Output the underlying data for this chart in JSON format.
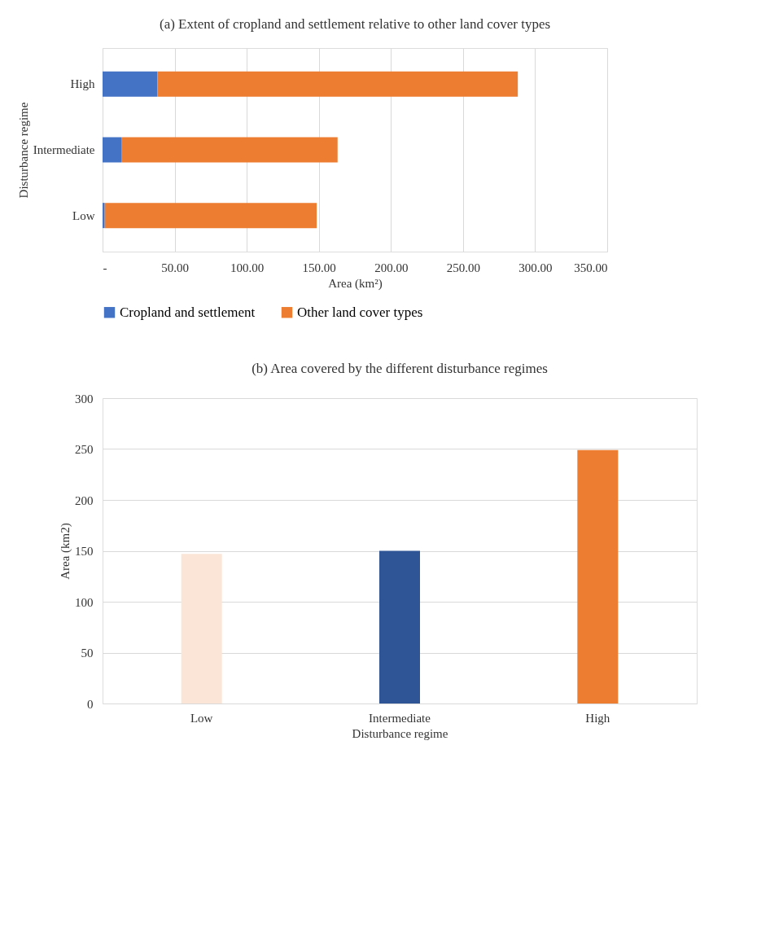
{
  "chart_data": [
    {
      "type": "bar",
      "orientation": "horizontal",
      "stacked": true,
      "title": "(a) Extent of cropland and settlement relative to other land cover types",
      "xlabel": "Area (km²)",
      "ylabel": "Disturbance regime",
      "categories": [
        "High",
        "Intermediate",
        "Low"
      ],
      "series": [
        {
          "name": "Cropland and settlement",
          "color": "#4472c4",
          "values": [
            38,
            13,
            1.5
          ]
        },
        {
          "name": "Other land cover types",
          "color": "#ed7d31",
          "values": [
            250,
            150,
            147
          ]
        }
      ],
      "xlim": [
        0,
        350
      ],
      "xticks": [
        {
          "value": 0,
          "label": "-"
        },
        {
          "value": 50,
          "label": "50.00"
        },
        {
          "value": 100,
          "label": "100.00"
        },
        {
          "value": 150,
          "label": "150.00"
        },
        {
          "value": 200,
          "label": "200.00"
        },
        {
          "value": 250,
          "label": "250.00"
        },
        {
          "value": 300,
          "label": "300.00"
        },
        {
          "value": 350,
          "label": "350.00"
        }
      ],
      "grid": "x",
      "legend": "bottom"
    },
    {
      "type": "bar",
      "title": "(b) Area covered by the different disturbance regimes",
      "xlabel": "Disturbance regime",
      "ylabel": "Area (km2)",
      "categories": [
        "Low",
        "Intermediate",
        "High"
      ],
      "values": [
        147,
        150,
        249
      ],
      "colors": [
        "#fbe5d6",
        "#2f5597",
        "#ed7d31"
      ],
      "ylim": [
        0,
        300
      ],
      "yticks": [
        0,
        50,
        100,
        150,
        200,
        250,
        300
      ],
      "grid": "y"
    }
  ]
}
